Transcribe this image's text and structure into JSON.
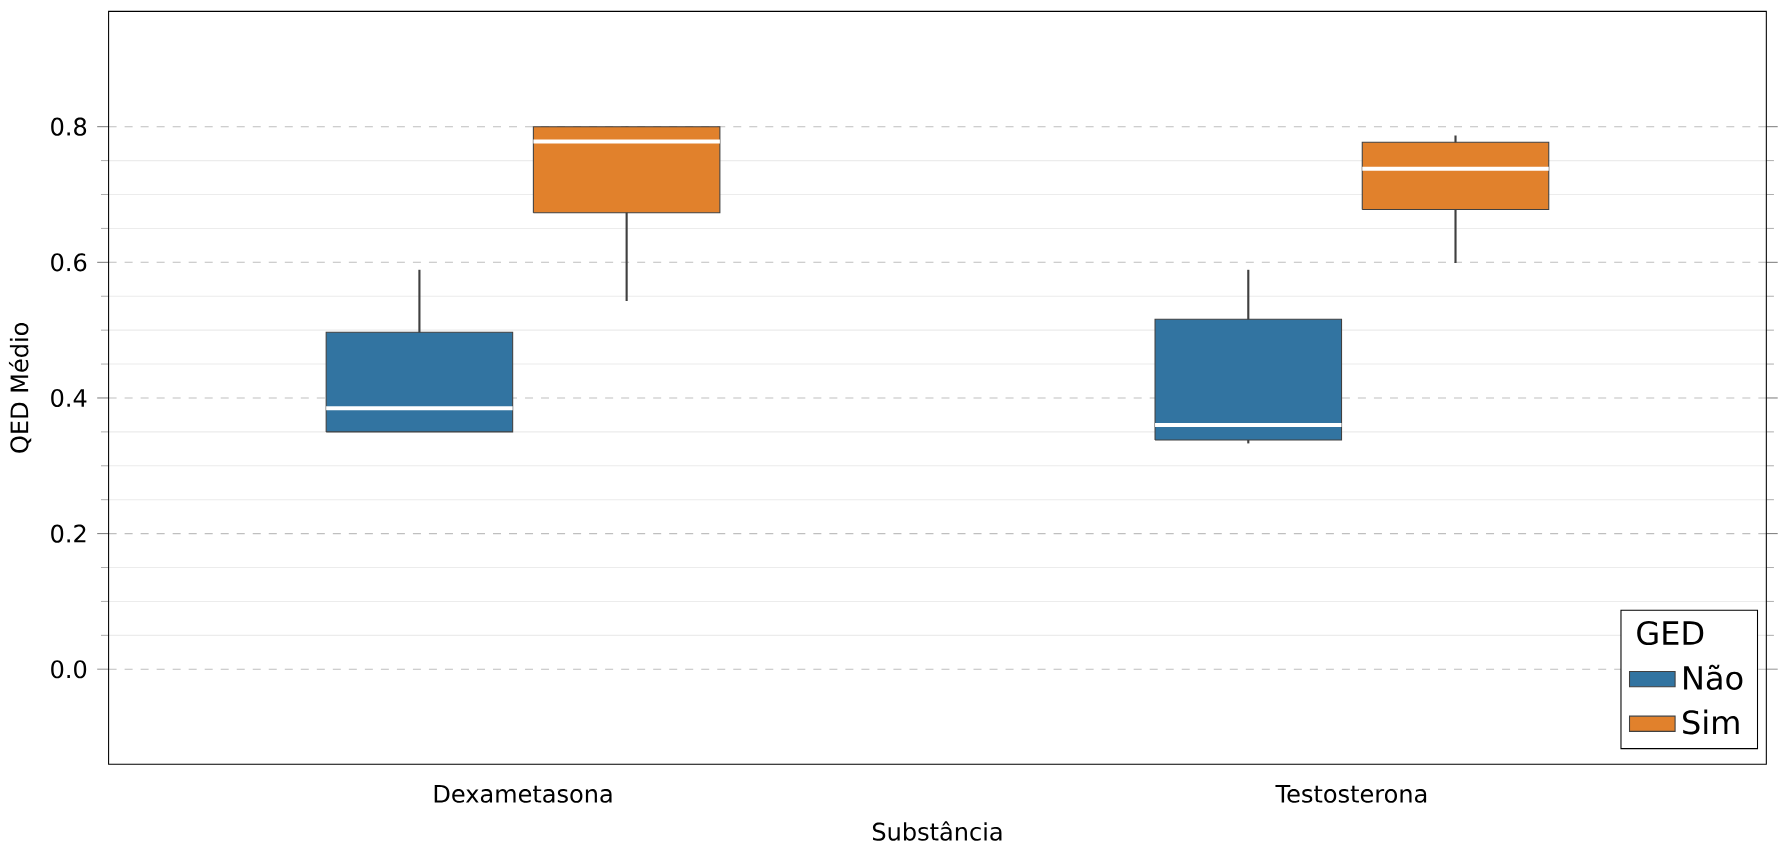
{
  "chart_data": {
    "type": "box",
    "xlabel": "Substância",
    "ylabel": "QED Médio",
    "legend_title": "GED",
    "legend": "bottom right",
    "grid": "y",
    "categories": [
      "Dexametasona",
      "Testosterona"
    ],
    "ylim": [
      -0.14,
      0.97
    ],
    "yticks": [
      {
        "value": 0,
        "label": "0.0"
      },
      0.2,
      0.4,
      0.6,
      0.8
    ],
    "series": [
      {
        "name": "Não",
        "color": "#3274a1",
        "boxes": [
          {
            "low": 0.35,
            "q1": 0.35,
            "median": 0.385,
            "q3": 0.497,
            "high": 0.589
          },
          {
            "low": 0.333,
            "q1": 0.338,
            "median": 0.36,
            "q3": 0.516,
            "high": 0.589
          }
        ]
      },
      {
        "name": "Sim",
        "color": "#e1812c",
        "boxes": [
          {
            "low": 0.543,
            "q1": 0.673,
            "median": 0.778,
            "q3": 0.8,
            "high": 0.8
          },
          {
            "low": 0.599,
            "q1": 0.678,
            "median": 0.738,
            "q3": 0.777,
            "high": 0.787
          }
        ]
      }
    ]
  }
}
